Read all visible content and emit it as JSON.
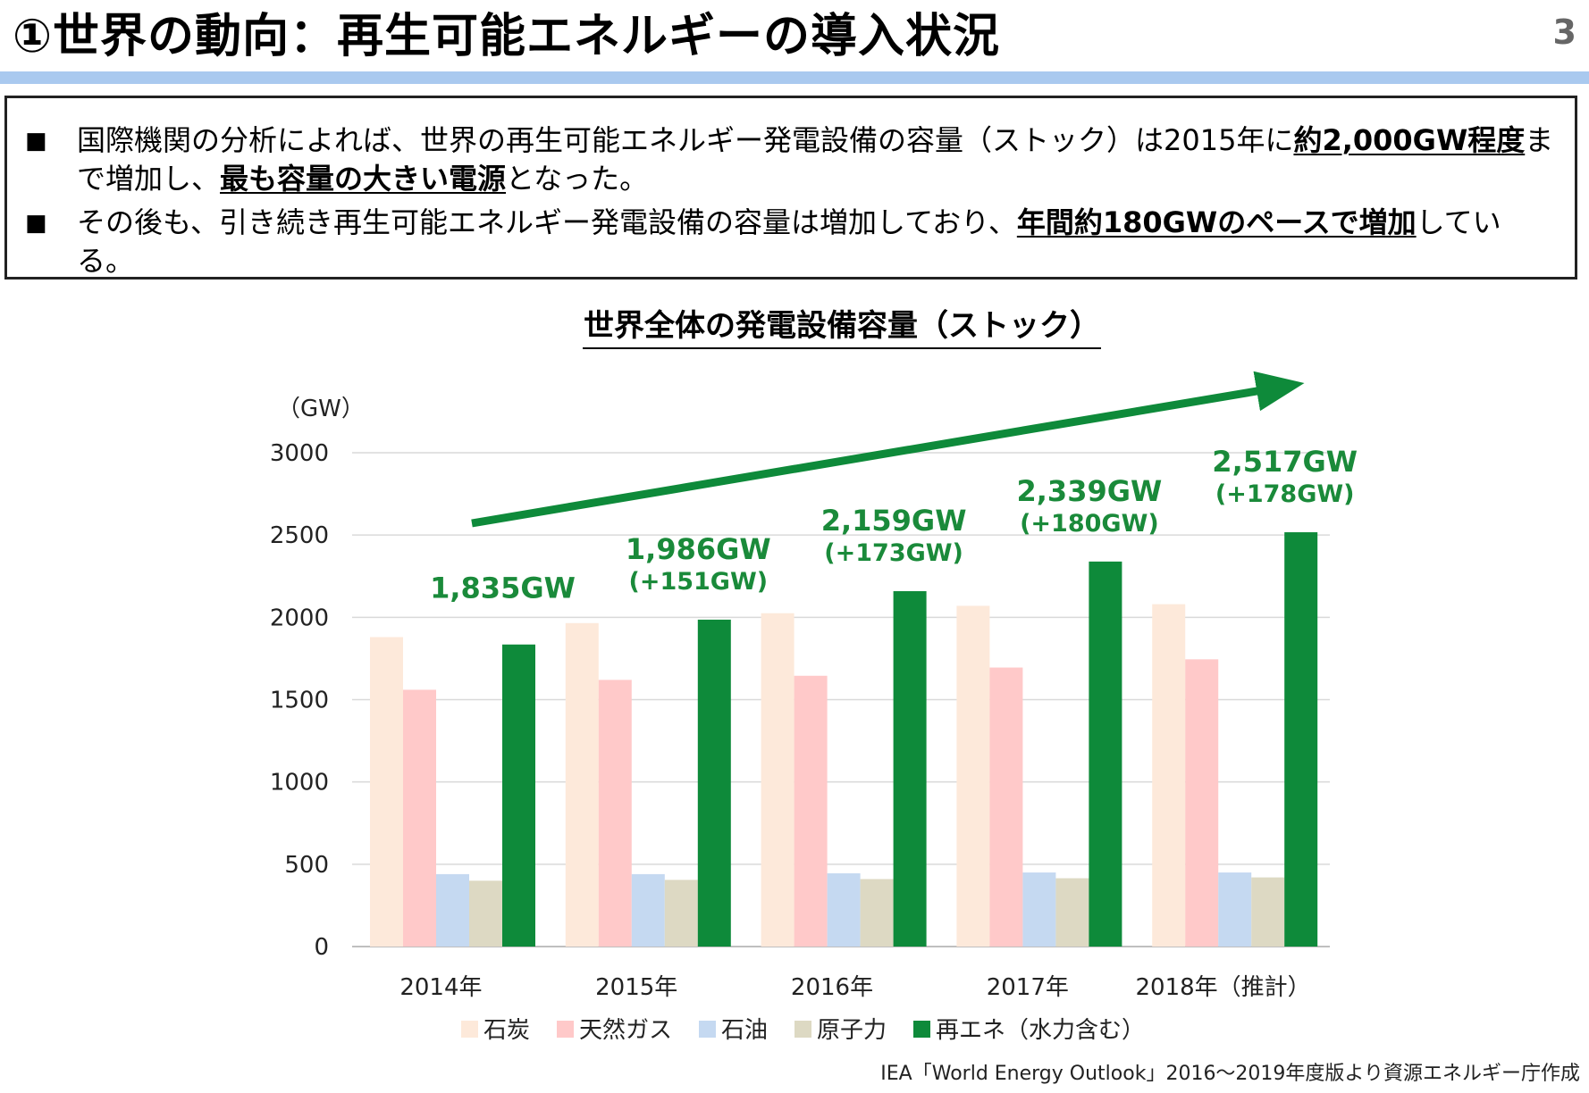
{
  "header": {
    "title": "①世界の動向：再生可能エネルギーの導入状況",
    "page_number": "3"
  },
  "summary": {
    "bullet_symbol": "■",
    "bullets": [
      {
        "text_a": "国際機関の分析によれば、世界の再生可能エネルギー発電設備の容量（ストック）は2015年に",
        "bold_a": "約2,000GW程度",
        "text_b": "まで増加し、",
        "bold_b": "最も容量の大きい電源",
        "text_c": "となった。"
      },
      {
        "text_a": "その後も、引き続き再生可能エネルギー発電設備の容量は増加しており、",
        "bold_a": "年間約180GWのペースで増加",
        "text_b": "している。"
      }
    ]
  },
  "chart_data": {
    "type": "bar",
    "title": "世界全体の発電設備容量（ストック）",
    "ylabel": "（GW）",
    "ylim": [
      0,
      3000
    ],
    "yticks": [
      "0",
      "500",
      "1000",
      "1500",
      "2000",
      "2500",
      "3000"
    ],
    "categories": [
      "2014年",
      "2015年",
      "2016年",
      "2017年",
      "2018年（推計）"
    ],
    "series": [
      {
        "name": "石炭",
        "color": "#fde9da",
        "values": [
          1880,
          1965,
          2025,
          2070,
          2080
        ]
      },
      {
        "name": "天然ガス",
        "color": "#ffc9c9",
        "values": [
          1560,
          1620,
          1645,
          1695,
          1745
        ]
      },
      {
        "name": "石油",
        "color": "#c5d9f1",
        "values": [
          440,
          440,
          445,
          450,
          450
        ]
      },
      {
        "name": "原子力",
        "color": "#ddd9c3",
        "values": [
          400,
          405,
          410,
          415,
          420
        ]
      },
      {
        "name": "再エネ（水力含む）",
        "color": "#0e8a3a",
        "values": [
          1835,
          1986,
          2159,
          2339,
          2517
        ]
      }
    ],
    "annotations": [
      {
        "total": "1,835GW",
        "delta": ""
      },
      {
        "total": "1,986GW",
        "delta": "(+151GW)"
      },
      {
        "total": "2,159GW",
        "delta": "(+173GW)"
      },
      {
        "total": "2,339GW",
        "delta": "(+180GW)"
      },
      {
        "total": "2,517GW",
        "delta": "(+178GW)"
      }
    ],
    "grid": true,
    "legend_position": "bottom",
    "trend_arrow": true
  },
  "source": "IEA「World Energy Outlook」2016～2019年度版より資源エネルギー庁作成"
}
